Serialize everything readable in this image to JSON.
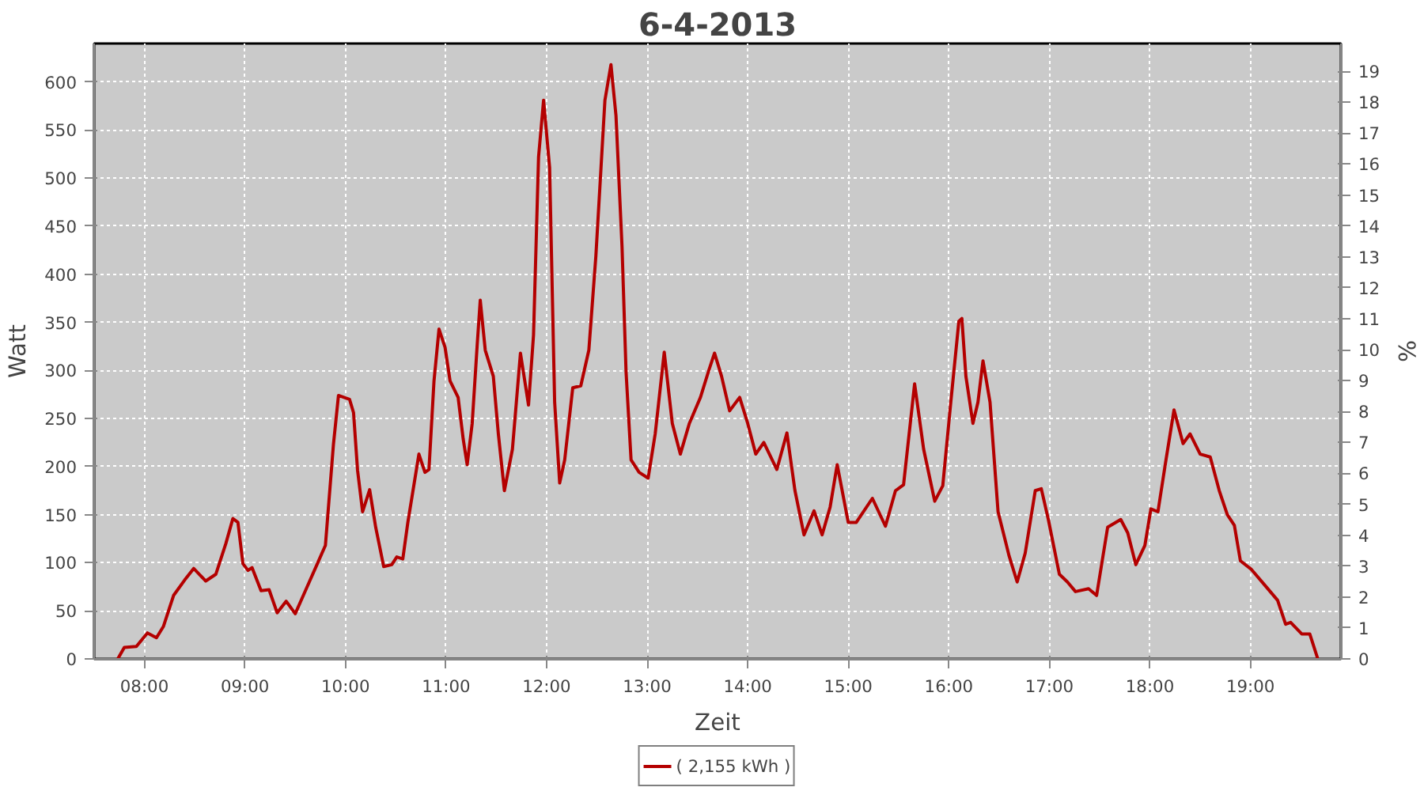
{
  "chart_data": {
    "type": "line",
    "title": "6-4-2013",
    "xlabel": "Zeit",
    "ylabel": "Watt",
    "y2label": "%",
    "xlim": [
      7.5,
      19.9
    ],
    "ylim": [
      0,
      640
    ],
    "y2lim": [
      0,
      19.9
    ],
    "xticks": [
      {
        "value": 8,
        "label": "08:00"
      },
      {
        "value": 9,
        "label": "09:00"
      },
      {
        "value": 10,
        "label": "10:00"
      },
      {
        "value": 11,
        "label": "11:00"
      },
      {
        "value": 12,
        "label": "12:00"
      },
      {
        "value": 13,
        "label": "13:00"
      },
      {
        "value": 14,
        "label": "14:00"
      },
      {
        "value": 15,
        "label": "15:00"
      },
      {
        "value": 16,
        "label": "16:00"
      },
      {
        "value": 17,
        "label": "17:00"
      },
      {
        "value": 18,
        "label": "18:00"
      },
      {
        "value": 19,
        "label": "19:00"
      }
    ],
    "yticks": [
      0,
      50,
      100,
      150,
      200,
      250,
      300,
      350,
      400,
      450,
      500,
      550,
      600
    ],
    "y2ticks": [
      0,
      1,
      2,
      3,
      4,
      5,
      6,
      7,
      8,
      9,
      10,
      11,
      12,
      13,
      14,
      15,
      16,
      17,
      18,
      19
    ],
    "grid": true,
    "legend": "bottom",
    "marker": "none",
    "line_style": "solid",
    "series": [
      {
        "name": "( 2,155 kWh )",
        "color": "#b40000",
        "x": [
          7.735,
          7.8,
          7.92,
          8.03,
          8.12,
          8.19,
          8.29,
          8.4,
          8.49,
          8.61,
          8.71,
          8.81,
          8.88,
          8.93,
          8.98,
          9.03,
          9.07,
          9.16,
          9.24,
          9.32,
          9.41,
          9.5,
          9.61,
          9.72,
          9.8,
          9.88,
          9.93,
          10.04,
          10.08,
          10.12,
          10.17,
          10.24,
          10.3,
          10.38,
          10.46,
          10.51,
          10.57,
          10.62,
          10.73,
          10.79,
          10.83,
          10.88,
          10.93,
          10.99,
          11.04,
          11.12,
          11.17,
          11.21,
          11.26,
          11.31,
          11.34,
          11.39,
          11.47,
          11.52,
          11.58,
          11.66,
          11.74,
          11.82,
          11.87,
          11.92,
          11.97,
          12.03,
          12.08,
          12.13,
          12.18,
          12.26,
          12.34,
          12.42,
          12.49,
          12.58,
          12.64,
          12.69,
          12.75,
          12.79,
          12.84,
          12.92,
          13.01,
          13.08,
          13.17,
          13.25,
          13.33,
          13.42,
          13.53,
          13.61,
          13.67,
          13.74,
          13.82,
          13.92,
          14.0,
          14.08,
          14.16,
          14.29,
          14.39,
          14.47,
          14.56,
          14.66,
          14.74,
          14.82,
          14.89,
          15.0,
          15.08,
          15.24,
          15.37,
          15.47,
          15.55,
          15.66,
          15.75,
          15.86,
          15.94,
          16.02,
          16.1,
          16.13,
          16.17,
          16.24,
          16.29,
          16.34,
          16.41,
          16.49,
          16.6,
          16.68,
          16.76,
          16.86,
          16.92,
          16.99,
          17.1,
          17.18,
          17.26,
          17.39,
          17.47,
          17.58,
          17.71,
          17.78,
          17.86,
          17.95,
          18.01,
          18.08,
          18.16,
          18.24,
          18.33,
          18.4,
          18.5,
          18.6,
          18.69,
          18.77,
          18.84,
          18.9,
          19.01,
          19.14,
          19.27,
          19.35,
          19.4,
          19.51,
          19.59,
          19.67
        ],
        "values": [
          0,
          12,
          13,
          27,
          22,
          34,
          66,
          82,
          94,
          81,
          88,
          120,
          146,
          142,
          99,
          92,
          95,
          71,
          72,
          48,
          60,
          47,
          73,
          99,
          118,
          223,
          274,
          270,
          256,
          196,
          153,
          176,
          137,
          96,
          98,
          106,
          104,
          142,
          213,
          194,
          197,
          289,
          343,
          324,
          289,
          272,
          229,
          202,
          245,
          327,
          373,
          321,
          294,
          234,
          175,
          218,
          318,
          264,
          337,
          522,
          581,
          511,
          267,
          183,
          207,
          282,
          284,
          321,
          419,
          581,
          618,
          565,
          429,
          299,
          207,
          194,
          188,
          234,
          319,
          245,
          213,
          245,
          272,
          299,
          318,
          294,
          258,
          272,
          245,
          213,
          225,
          197,
          235,
          175,
          129,
          154,
          129,
          158,
          202,
          142,
          142,
          167,
          138,
          175,
          181,
          286,
          218,
          164,
          180,
          267,
          351,
          354,
          294,
          245,
          267,
          310,
          267,
          153,
          107,
          80,
          110,
          175,
          177,
          145,
          88,
          80,
          70,
          73,
          66,
          137,
          145,
          131,
          98,
          118,
          156,
          153,
          207,
          259,
          224,
          234,
          213,
          210,
          175,
          150,
          139,
          102,
          93,
          77,
          61,
          36,
          38,
          26,
          26,
          0
        ]
      }
    ]
  }
}
